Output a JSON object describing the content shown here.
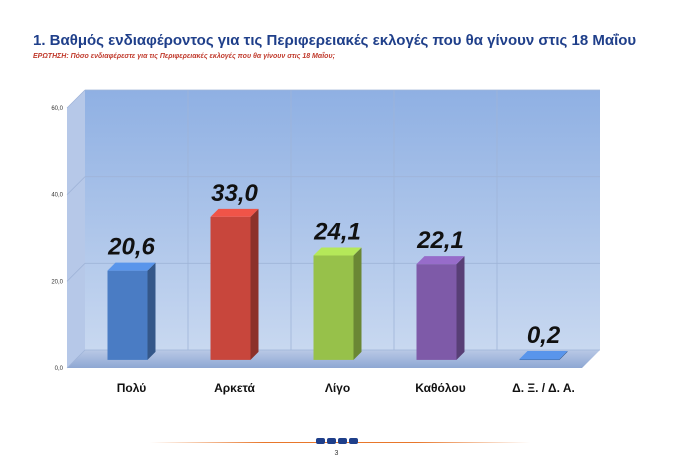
{
  "header": {
    "title": "1. Βαθμός ενδιαφέροντος για τις Περιφερειακές εκλογές που θα γίνουν στις 18 Μαΐου",
    "question": "ΕΡΩΤΗΣΗ: Πόσο ενδιαφέρεστε για τις Περιφερειακές εκλογές που θα γίνουν στις 18 Μαΐου;"
  },
  "chart_data": {
    "type": "bar",
    "categories": [
      "Πολύ",
      "Αρκετά",
      "Λίγο",
      "Καθόλου",
      "Δ. Ξ. / Δ. Α."
    ],
    "values": [
      20.6,
      33.0,
      24.1,
      22.1,
      0.2
    ],
    "value_labels": [
      "20,6",
      "33,0",
      "24,1",
      "22,1",
      "0,2"
    ],
    "colors": [
      "#4a7cc4",
      "#c8463c",
      "#97c14a",
      "#7e5aa8",
      "#4a7cc4"
    ],
    "ylim": [
      0,
      60
    ],
    "y_ticks": [
      "0,0",
      "20,0",
      "40,0",
      "60,0"
    ],
    "grid": true,
    "style": "3d-cylinder-bars",
    "background": "#aac2e8"
  },
  "footer": {
    "page_number": "3"
  }
}
